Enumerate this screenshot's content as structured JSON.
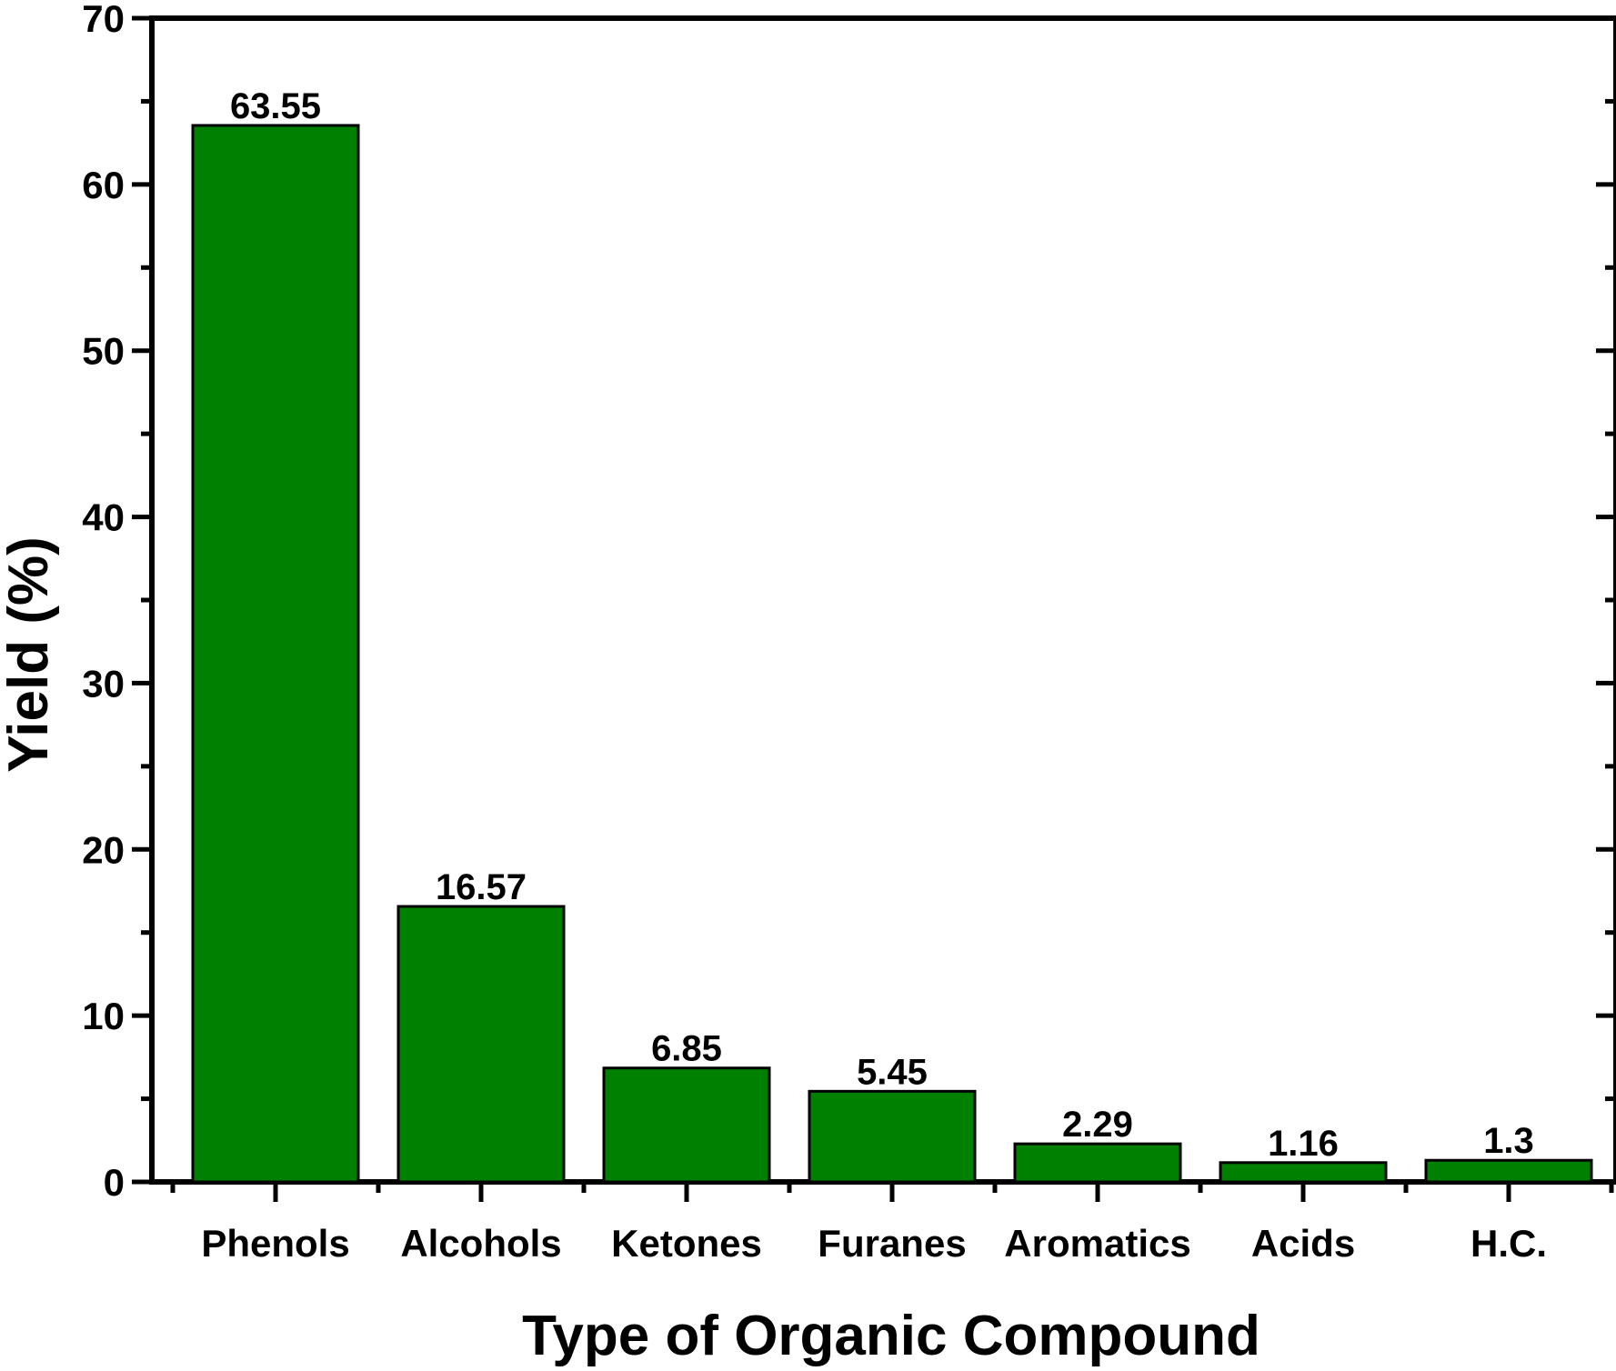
{
  "chart_data": {
    "type": "bar",
    "title": "",
    "xlabel": "Type of Organic Compound",
    "ylabel": "Yield (%)",
    "categories": [
      "Phenols",
      "Alcohols",
      "Ketones",
      "Furanes",
      "Aromatics",
      "Acids",
      "H.C."
    ],
    "values": [
      63.55,
      16.57,
      6.85,
      5.45,
      2.29,
      1.16,
      1.3
    ],
    "data_labels": [
      "63.55",
      "16.57",
      "6.85",
      "5.45",
      "2.29",
      "1.16",
      "1.3"
    ],
    "ylim": [
      0,
      70
    ],
    "yticks": [
      0,
      10,
      20,
      30,
      40,
      50,
      60,
      70
    ],
    "grid": false,
    "legend": "none",
    "colors": {
      "bar_fill": "#008000",
      "bar_stroke": "#000000",
      "axis": "#000000"
    }
  }
}
